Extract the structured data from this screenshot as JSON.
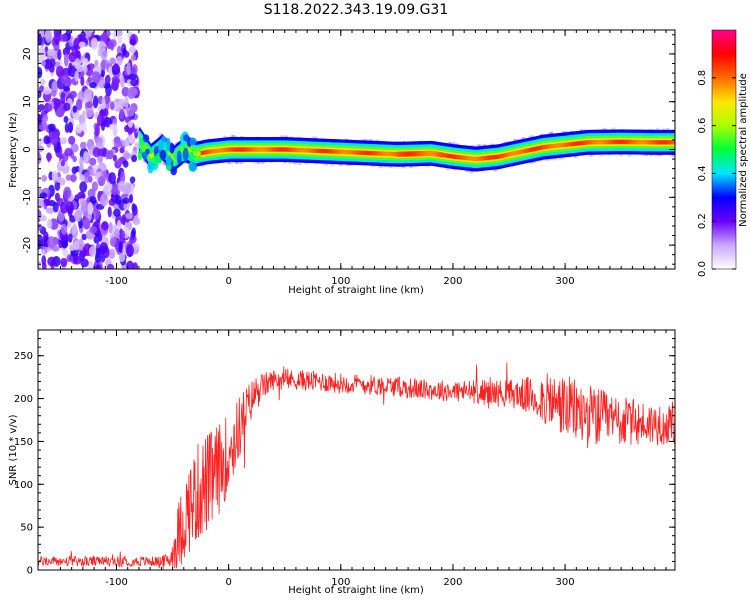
{
  "figure": {
    "title": "S118.2022.343.19.09.G31"
  },
  "chart_data": [
    {
      "type": "heatmap",
      "xlabel": "Height of straight line (km)",
      "ylabel": "Frequency (Hz)",
      "xlim": [
        -170,
        398
      ],
      "ylim": [
        -25,
        25
      ],
      "xticks": [
        -100,
        0,
        100,
        200,
        300
      ],
      "yticks": [
        -20,
        -10,
        0,
        10,
        20
      ],
      "colorbar": {
        "label": "Normalized spectral amplitude",
        "range": [
          0,
          1
        ],
        "ticks": [
          0.0,
          0.2,
          0.4,
          0.6,
          0.8
        ],
        "colormap": [
          "#ffffff",
          "#c9a8ff",
          "#6a00ff",
          "#0000ff",
          "#00e5ff",
          "#00ff3c",
          "#aaff00",
          "#ffe600",
          "#ff6a00",
          "#ff0000",
          "#ff0090"
        ]
      },
      "ridge": {
        "x": [
          -80,
          -70,
          -60,
          -50,
          -40,
          -30,
          -20,
          0,
          50,
          100,
          150,
          180,
          200,
          220,
          240,
          260,
          280,
          300,
          320,
          350,
          380,
          398
        ],
        "freq": [
          2.0,
          -1.5,
          0.5,
          -2.0,
          0.0,
          -1.0,
          -0.5,
          0.0,
          0.0,
          -0.5,
          -1.0,
          -0.8,
          -1.5,
          -2.0,
          -1.5,
          -0.5,
          0.5,
          1.0,
          1.5,
          1.6,
          1.5,
          1.5
        ]
      },
      "noise_region_x": [
        -170,
        -82
      ]
    },
    {
      "type": "line",
      "xlabel": "Height of straight line (km)",
      "ylabel": "SNR (10 * v/v)",
      "xlim": [
        -170,
        398
      ],
      "ylim": [
        0,
        280
      ],
      "xticks": [
        -100,
        0,
        100,
        200,
        300
      ],
      "yticks": [
        0,
        50,
        100,
        150,
        200,
        250
      ],
      "color": "#ff2020",
      "envelope": {
        "x": [
          -170,
          -60,
          -52,
          -45,
          -35,
          -25,
          -15,
          -5,
          5,
          15,
          25,
          40,
          60,
          100,
          140,
          180,
          220,
          260,
          280,
          300,
          320,
          340,
          360,
          380,
          398
        ],
        "mean": [
          10,
          10,
          12,
          40,
          75,
          95,
          105,
          125,
          150,
          185,
          210,
          222,
          222,
          218,
          215,
          210,
          208,
          205,
          200,
          190,
          180,
          175,
          172,
          170,
          168
        ],
        "spread": [
          6,
          6,
          10,
          40,
          55,
          60,
          60,
          50,
          45,
          30,
          18,
          12,
          12,
          12,
          12,
          12,
          14,
          18,
          30,
          38,
          38,
          32,
          28,
          25,
          22
        ]
      }
    }
  ]
}
